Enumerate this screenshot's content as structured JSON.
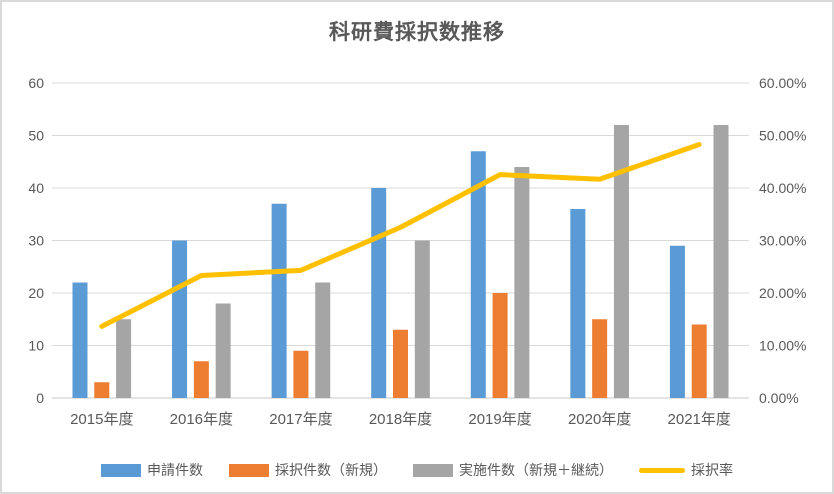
{
  "chart_data": {
    "type": "combo-bar-line",
    "title": "科研費採択数推移",
    "categories": [
      "2015年度",
      "2016年度",
      "2017年度",
      "2018年度",
      "2019年度",
      "2020年度",
      "2021年度"
    ],
    "series": [
      {
        "name": "申請件数",
        "type": "bar",
        "axis": "left",
        "color": "#5B9BD5",
        "values": [
          22,
          30,
          37,
          40,
          47,
          36,
          29
        ]
      },
      {
        "name": "採択件数（新規）",
        "type": "bar",
        "axis": "left",
        "color": "#ED7D31",
        "values": [
          3,
          7,
          9,
          13,
          20,
          15,
          14
        ]
      },
      {
        "name": "実施件数（新規＋継続）",
        "type": "bar",
        "axis": "left",
        "color": "#A5A5A5",
        "values": [
          15,
          18,
          22,
          30,
          44,
          52,
          52
        ]
      },
      {
        "name": "採択率",
        "type": "line",
        "axis": "right",
        "color": "#FFC000",
        "values_percent": [
          13.64,
          23.33,
          24.32,
          32.5,
          42.55,
          41.67,
          48.28
        ]
      }
    ],
    "left_axis": {
      "min": 0,
      "max": 60,
      "step": 10,
      "tick_labels": [
        "0",
        "10",
        "20",
        "30",
        "40",
        "50",
        "60"
      ]
    },
    "right_axis": {
      "min": 0,
      "max": 60,
      "step": 10,
      "tick_labels": [
        "0.00%",
        "10.00%",
        "20.00%",
        "30.00%",
        "40.00%",
        "50.00%",
        "60.00%"
      ]
    },
    "grid": true,
    "legend_position": "bottom",
    "legend_entries": [
      "申請件数",
      "採択件数（新規）",
      "実施件数（新規＋継続）",
      "採択率"
    ]
  },
  "style_colors": {
    "text": "#595959",
    "gridline": "#D9D9D9",
    "border": "#D9D9D9",
    "background": "#FFFFFF"
  }
}
